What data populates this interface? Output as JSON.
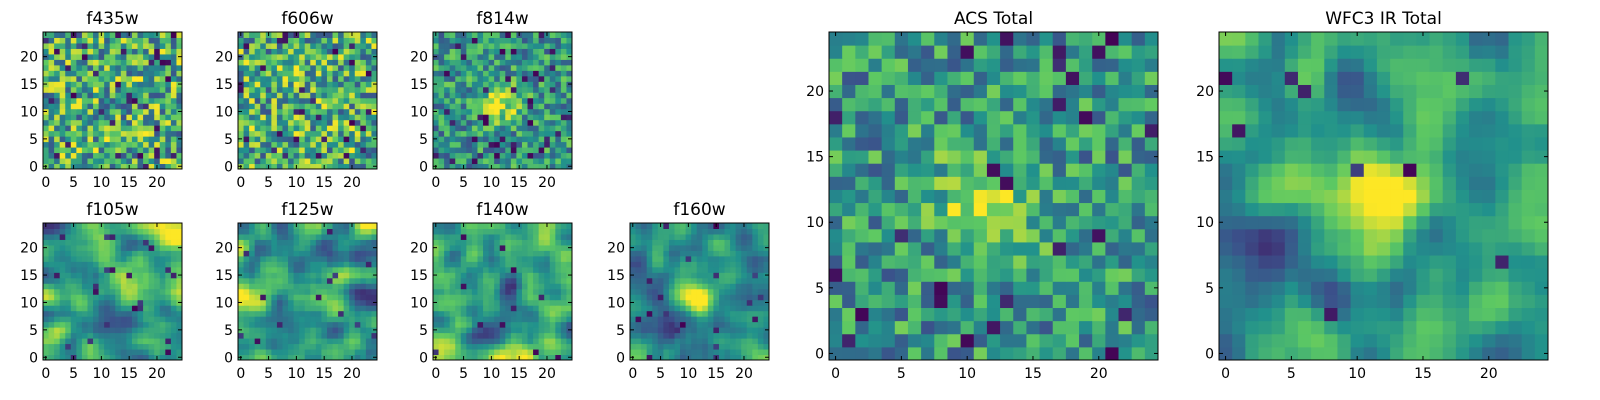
{
  "figure": {
    "colormap": [
      "#440154",
      "#3b528b",
      "#21918c",
      "#5ec962",
      "#fde725"
    ],
    "frame_color": "#000000",
    "background": "#ffffff"
  },
  "chart_data": [
    {
      "type": "heatmap",
      "title": "f435w",
      "grid_size": 25,
      "xticks": [
        0,
        5,
        10,
        15,
        20
      ],
      "yticks": [
        0,
        5,
        10,
        15,
        20
      ],
      "xlim": [
        0,
        24
      ],
      "ylim": [
        0,
        24
      ],
      "pattern": "noise"
    },
    {
      "type": "heatmap",
      "title": "f606w",
      "grid_size": 25,
      "xticks": [
        0,
        5,
        10,
        15,
        20
      ],
      "yticks": [
        0,
        5,
        10,
        15,
        20
      ],
      "xlim": [
        0,
        24
      ],
      "ylim": [
        0,
        24
      ],
      "pattern": "noise"
    },
    {
      "type": "heatmap",
      "title": "f814w",
      "grid_size": 25,
      "xticks": [
        0,
        5,
        10,
        15,
        20
      ],
      "yticks": [
        0,
        5,
        10,
        15,
        20
      ],
      "xlim": [
        0,
        24
      ],
      "ylim": [
        0,
        24
      ],
      "pattern": "noise_center"
    },
    {
      "type": "heatmap",
      "title": "f105w",
      "grid_size": 25,
      "xticks": [
        0,
        5,
        10,
        15,
        20
      ],
      "yticks": [
        0,
        5,
        10,
        15,
        20
      ],
      "xlim": [
        0,
        24
      ],
      "ylim": [
        0,
        24
      ],
      "pattern": "smooth"
    },
    {
      "type": "heatmap",
      "title": "f125w",
      "grid_size": 25,
      "xticks": [
        0,
        5,
        10,
        15,
        20
      ],
      "yticks": [
        0,
        5,
        10,
        15,
        20
      ],
      "xlim": [
        0,
        24
      ],
      "ylim": [
        0,
        24
      ],
      "pattern": "smooth"
    },
    {
      "type": "heatmap",
      "title": "f140w",
      "grid_size": 25,
      "xticks": [
        0,
        5,
        10,
        15,
        20
      ],
      "yticks": [
        0,
        5,
        10,
        15,
        20
      ],
      "xlim": [
        0,
        24
      ],
      "ylim": [
        0,
        24
      ],
      "pattern": "smooth"
    },
    {
      "type": "heatmap",
      "title": "f160w",
      "grid_size": 25,
      "xticks": [
        0,
        5,
        10,
        15,
        20
      ],
      "yticks": [
        0,
        5,
        10,
        15,
        20
      ],
      "xlim": [
        0,
        24
      ],
      "ylim": [
        0,
        24
      ],
      "pattern": "smooth_center"
    },
    {
      "type": "heatmap",
      "title": "ACS Total",
      "grid_size": 25,
      "xticks": [
        0,
        5,
        10,
        15,
        20
      ],
      "yticks": [
        0,
        5,
        10,
        15,
        20
      ],
      "xlim": [
        0,
        24
      ],
      "ylim": [
        0,
        24
      ],
      "pattern": "noise_center"
    },
    {
      "type": "heatmap",
      "title": "WFC3 IR Total",
      "grid_size": 25,
      "xticks": [
        0,
        5,
        10,
        15,
        20
      ],
      "yticks": [
        0,
        5,
        10,
        15,
        20
      ],
      "xlim": [
        0,
        24
      ],
      "ylim": [
        0,
        24
      ],
      "pattern": "smooth_center"
    }
  ]
}
